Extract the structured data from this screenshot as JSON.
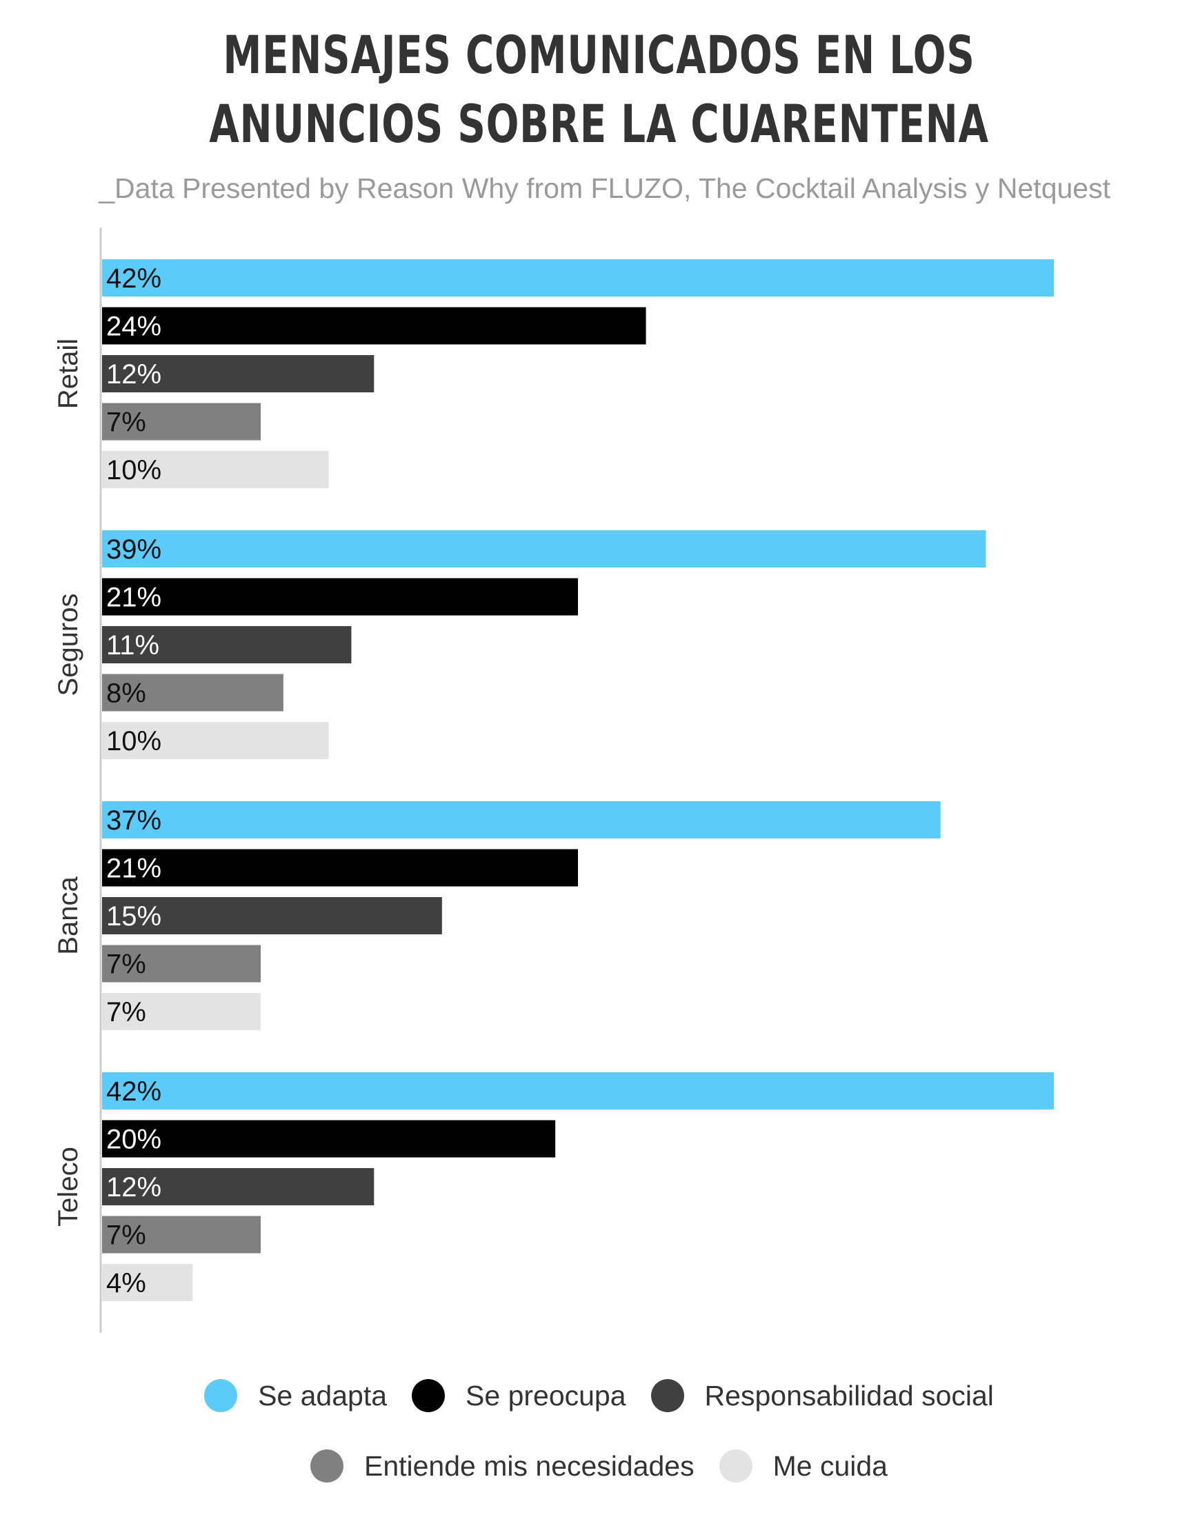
{
  "chart_data": {
    "type": "bar",
    "orientation": "horizontal",
    "title": "MENSAJES COMUNICADOS EN LOS ANUNCIOS SOBRE LA CUARENTENA",
    "subtitle": "_Data Presented by Reason Why from FLUZO, The Cocktail Analysis y Netquest",
    "categories": [
      "Retail",
      "Seguros",
      "Banca",
      "Teleco"
    ],
    "series": [
      {
        "name": "Se adapta",
        "color": "#5bcbfa",
        "label_color": "#111111",
        "values": [
          42,
          39,
          37,
          42
        ]
      },
      {
        "name": "Se preocupa",
        "color": "#000000",
        "label_color": "#ffffff",
        "values": [
          24,
          21,
          21,
          20
        ]
      },
      {
        "name": "Responsabilidad social",
        "color": "#404040",
        "label_color": "#ffffff",
        "values": [
          12,
          11,
          15,
          12
        ]
      },
      {
        "name": "Entiende mis necesidades",
        "color": "#808080",
        "label_color": "#111111",
        "values": [
          7,
          8,
          7,
          7
        ]
      },
      {
        "name": "Me cuida",
        "color": "#e3e3e3",
        "label_color": "#111111",
        "values": [
          10,
          10,
          7,
          4
        ]
      }
    ],
    "value_suffix": "%",
    "xlim": [
      0,
      42
    ],
    "grid": false,
    "legend_position": "bottom"
  },
  "colors": {
    "title": "#333333",
    "subtitle": "#9a9a9a",
    "axis": "#cccccc",
    "category_label": "#333333"
  }
}
